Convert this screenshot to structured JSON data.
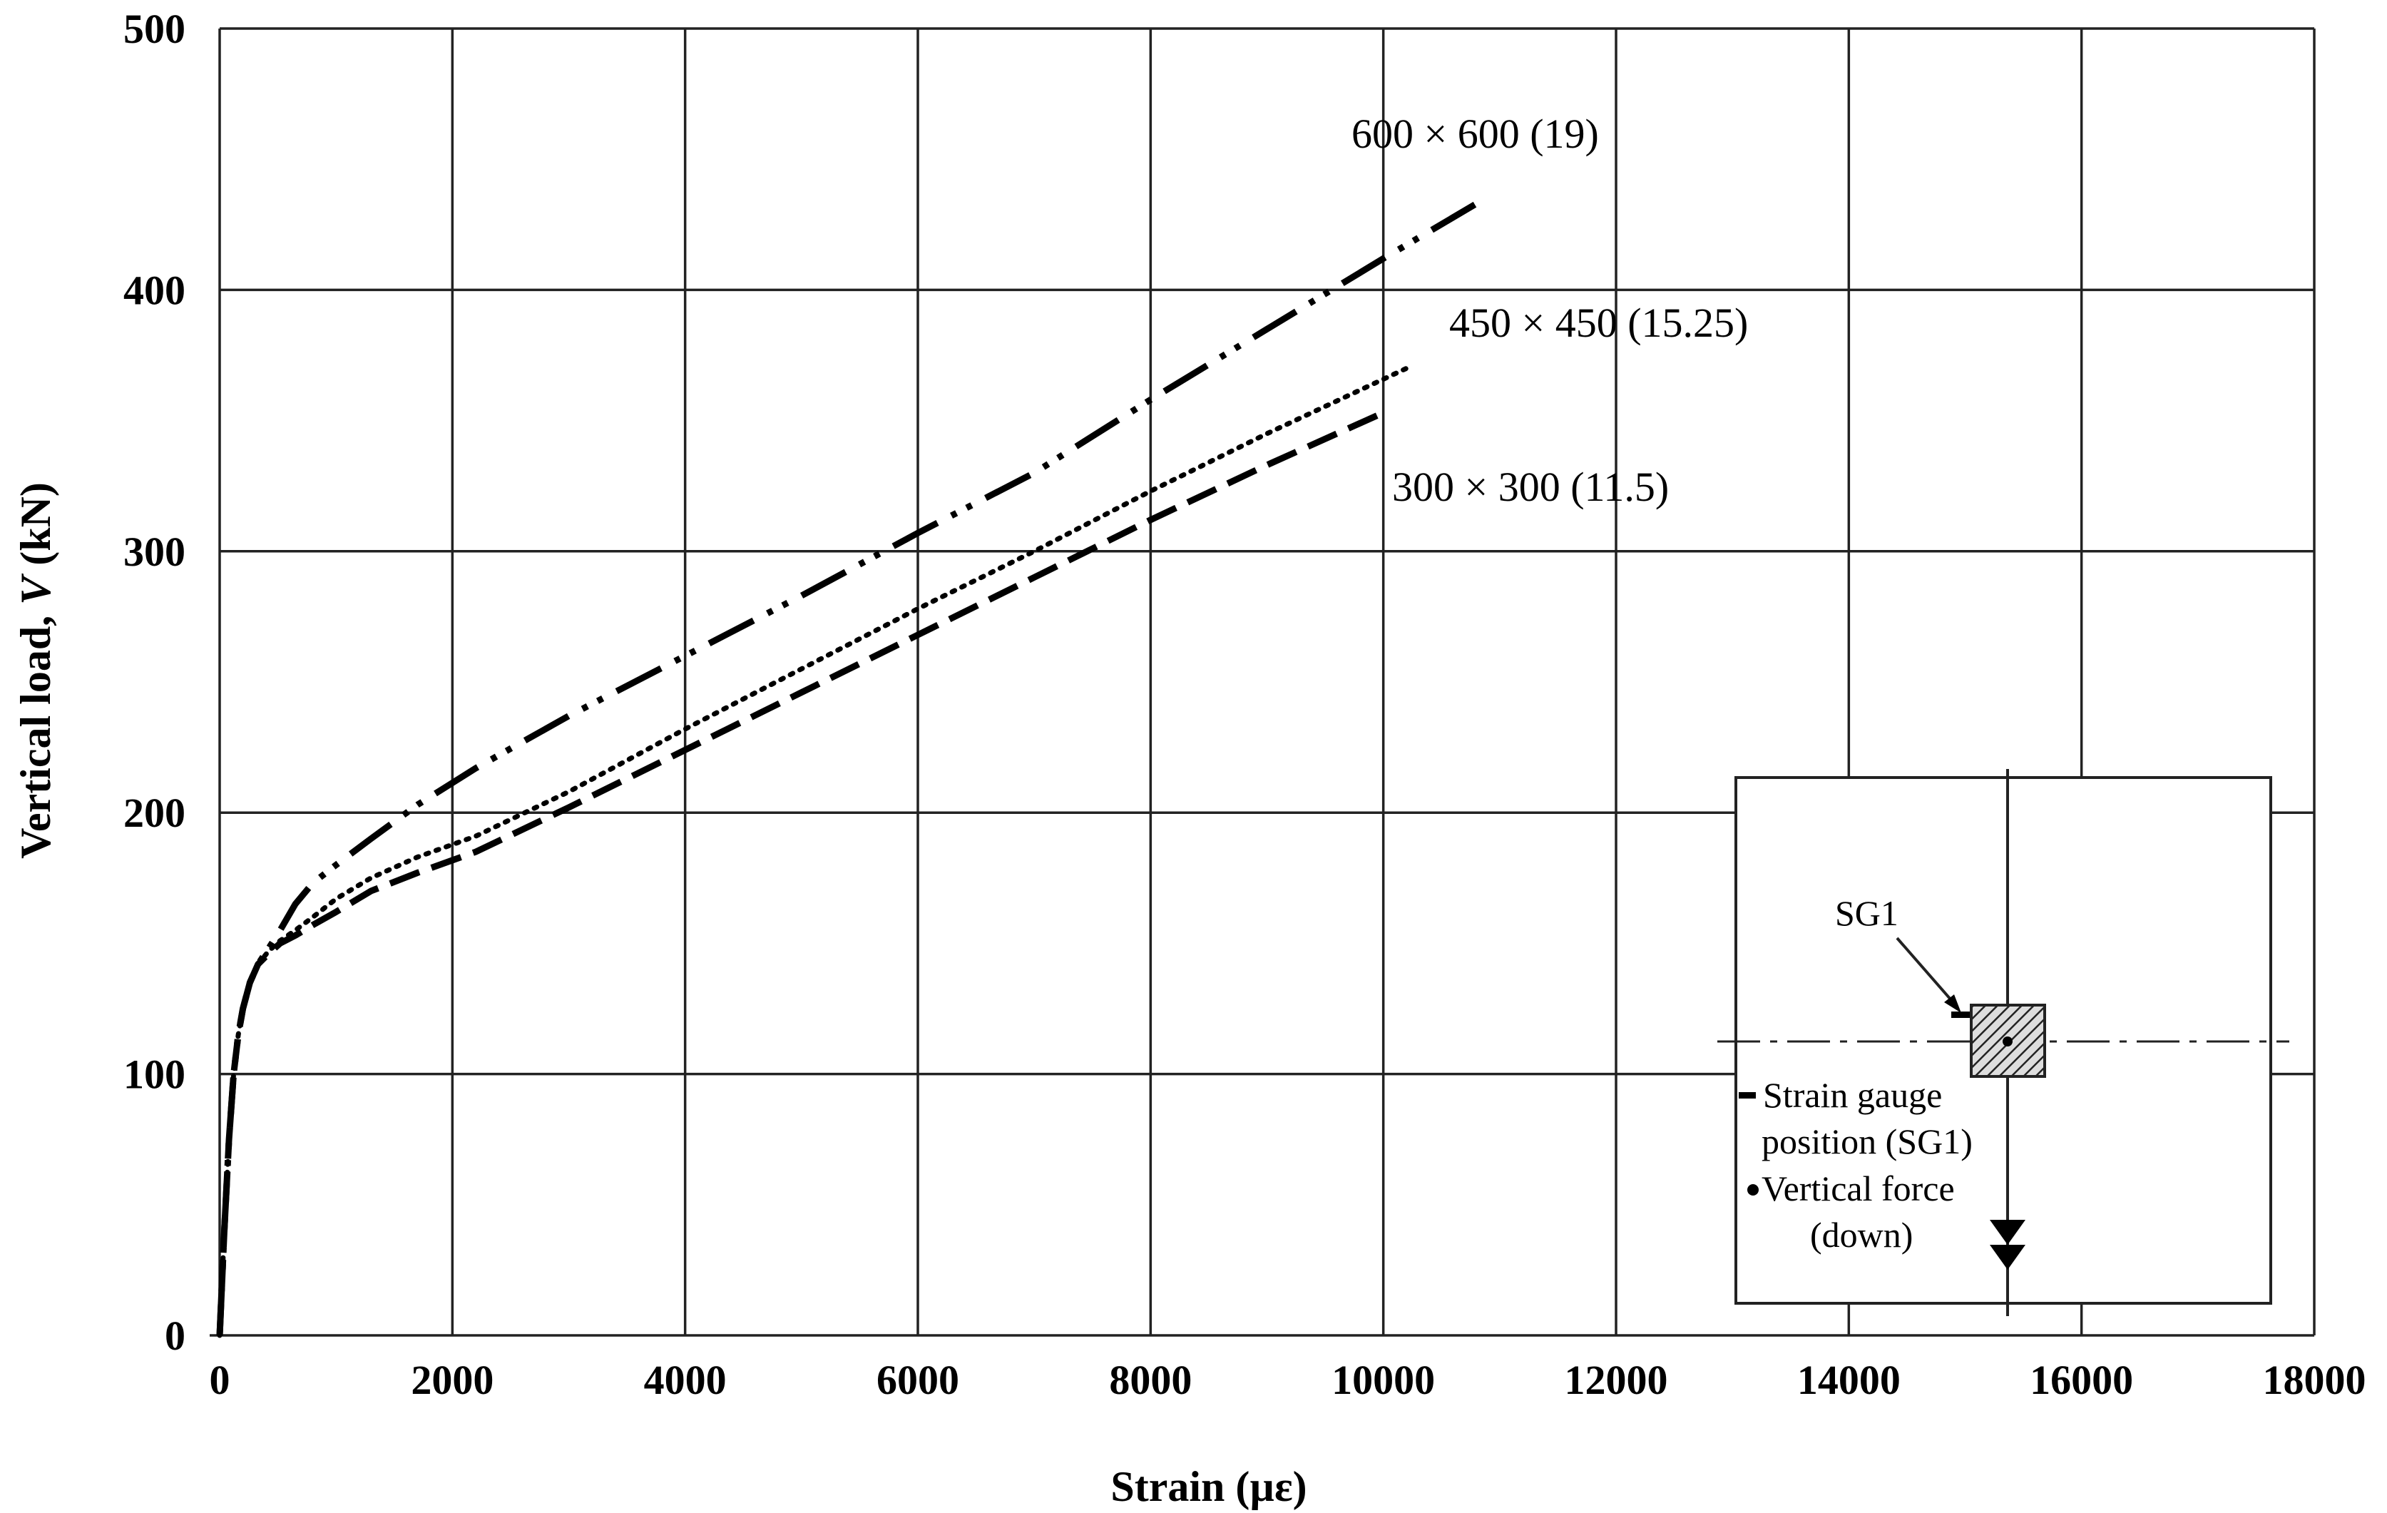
{
  "chart_data": {
    "type": "line",
    "title": "",
    "xlabel": "Strain (µε)",
    "ylabel_prefix": "Vertical load, ",
    "ylabel_var": "V",
    "ylabel_suffix": " (kN)",
    "xlim": [
      0,
      18000
    ],
    "ylim": [
      0,
      500
    ],
    "xticks": [
      0,
      2000,
      4000,
      6000,
      8000,
      10000,
      12000,
      14000,
      16000,
      18000
    ],
    "yticks": [
      0,
      100,
      200,
      300,
      400,
      500
    ],
    "grid": true,
    "series": [
      {
        "name": "600 × 600  (19)",
        "style": "dash-dot-dot",
        "x": [
          0,
          40,
          80,
          120,
          160,
          200,
          260,
          330,
          420,
          520,
          650,
          800,
          1000,
          1300,
          1700,
          2200,
          3000,
          4000,
          5000,
          6000,
          7000,
          8000,
          9000,
          10000,
          10800
        ],
        "y": [
          0,
          40,
          75,
          100,
          115,
          125,
          135,
          142,
          148,
          155,
          165,
          173,
          180,
          190,
          203,
          217,
          237,
          260,
          283,
          307,
          330,
          358,
          385,
          412,
          433
        ]
      },
      {
        "name": "450 ×  450  (15.25)",
        "style": "dotted",
        "x": [
          0,
          40,
          80,
          120,
          160,
          200,
          260,
          330,
          420,
          520,
          650,
          800,
          1000,
          1300,
          1700,
          2200,
          3000,
          4000,
          5000,
          6000,
          7000,
          8000,
          9000,
          10200
        ],
        "y": [
          0,
          40,
          75,
          100,
          115,
          125,
          135,
          142,
          147,
          151,
          155,
          160,
          167,
          175,
          183,
          191,
          208,
          232,
          255,
          278,
          300,
          323,
          345,
          370
        ]
      },
      {
        "name": "300 × 300  (11.5)",
        "style": "dashed",
        "x": [
          0,
          40,
          80,
          120,
          160,
          200,
          260,
          330,
          420,
          520,
          650,
          800,
          1000,
          1300,
          1700,
          2200,
          3000,
          4000,
          5000,
          6000,
          7000,
          8000,
          9000,
          10000
        ],
        "y": [
          0,
          40,
          75,
          100,
          115,
          125,
          135,
          142,
          146,
          150,
          153,
          157,
          162,
          170,
          177,
          185,
          202,
          224,
          246,
          268,
          290,
          312,
          333,
          353
        ]
      }
    ],
    "inset": {
      "sg_label": "SG1",
      "legend_strain": "Strain gauge",
      "legend_strain_2": "position (SG1)",
      "legend_force": "Vertical force",
      "legend_force_2": "(down)"
    }
  }
}
